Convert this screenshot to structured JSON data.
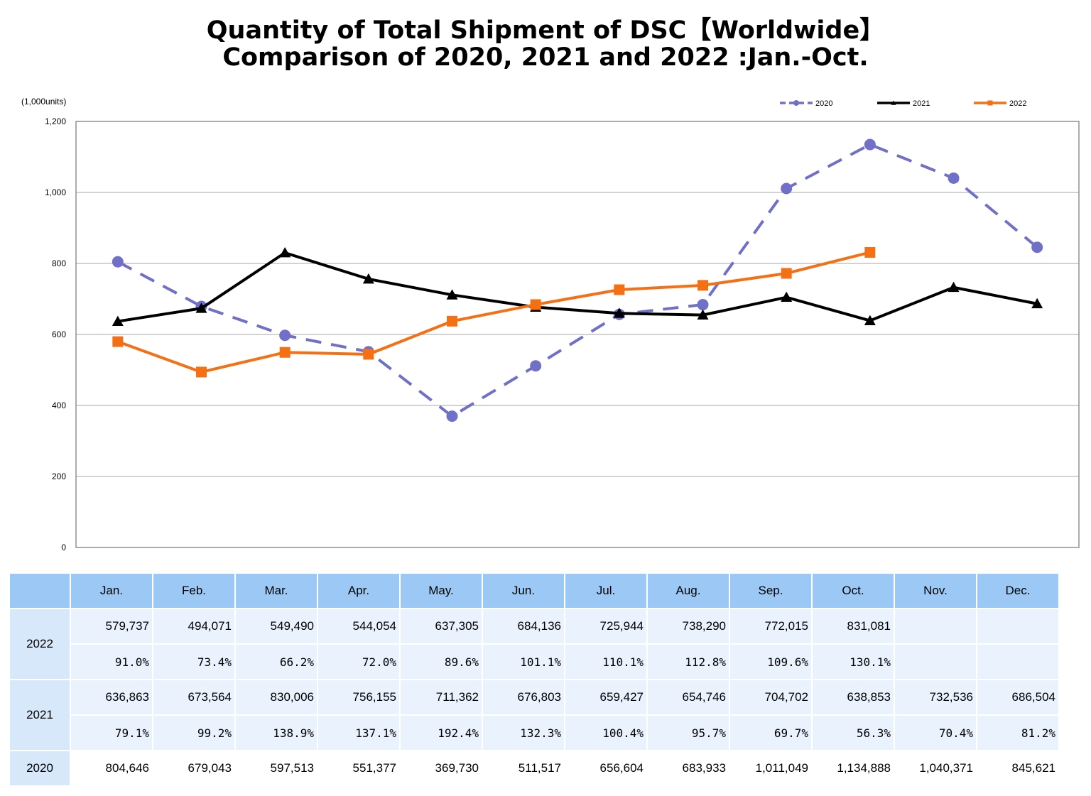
{
  "title_line1": "Quantity of Total Shipment of DSC【Worldwide】",
  "title_line2": "Comparison of 2020, 2021 and 2022 :Jan.-Oct.",
  "chart_data": {
    "type": "line",
    "unit_label": "(1,000units)",
    "categories": [
      "Jan.",
      "Feb.",
      "Mar.",
      "Apr.",
      "May.",
      "Jun.",
      "Jul.",
      "Aug.",
      "Sep.",
      "Oct.",
      "Nov.",
      "Dec."
    ],
    "ylim": [
      0,
      1200
    ],
    "yticks": [
      0,
      200,
      400,
      600,
      800,
      1000,
      1200
    ],
    "ytick_labels": [
      "0",
      "200",
      "400",
      "600",
      "800",
      "1,000",
      "1,200"
    ],
    "grid": true,
    "legend_position": "top-right",
    "series": [
      {
        "name": "2020",
        "color": "#7070c8",
        "style": "dashed",
        "marker": "circle",
        "values": [
          804.646,
          679.043,
          597.513,
          551.377,
          369.73,
          511.517,
          656.604,
          683.933,
          1011.049,
          1134.888,
          1040.371,
          845.621
        ]
      },
      {
        "name": "2021",
        "color": "#000000",
        "style": "solid",
        "marker": "triangle",
        "values": [
          636.863,
          673.564,
          830.006,
          756.155,
          711.362,
          676.803,
          659.427,
          654.746,
          704.702,
          638.853,
          732.536,
          686.504
        ]
      },
      {
        "name": "2022",
        "color": "#f57014",
        "style": "solid",
        "marker": "square",
        "values": [
          579.737,
          494.071,
          549.49,
          544.054,
          637.305,
          684.136,
          725.944,
          738.29,
          772.015,
          831.081,
          null,
          null
        ]
      }
    ]
  },
  "table": {
    "months": [
      "Jan.",
      "Feb.",
      "Mar.",
      "Apr.",
      "May.",
      "Jun.",
      "Jul.",
      "Aug.",
      "Sep.",
      "Oct.",
      "Nov.",
      "Dec."
    ],
    "rows": [
      {
        "year": "2022",
        "units": [
          "579,737",
          "494,071",
          "549,490",
          "544,054",
          "637,305",
          "684,136",
          "725,944",
          "738,290",
          "772,015",
          "831,081",
          "",
          ""
        ],
        "pct": [
          "91.0%",
          "73.4%",
          "66.2%",
          "72.0%",
          "89.6%",
          "101.1%",
          "110.1%",
          "112.8%",
          "109.6%",
          "130.1%",
          "",
          ""
        ]
      },
      {
        "year": "2021",
        "units": [
          "636,863",
          "673,564",
          "830,006",
          "756,155",
          "711,362",
          "676,803",
          "659,427",
          "654,746",
          "704,702",
          "638,853",
          "732,536",
          "686,504"
        ],
        "pct": [
          "79.1%",
          "99.2%",
          "138.9%",
          "137.1%",
          "192.4%",
          "132.3%",
          "100.4%",
          "95.7%",
          "69.7%",
          "56.3%",
          "70.4%",
          "81.2%"
        ]
      },
      {
        "year": "2020",
        "units": [
          "804,646",
          "679,043",
          "597,513",
          "551,377",
          "369,730",
          "511,517",
          "656,604",
          "683,933",
          "1,011,049",
          "1,134,888",
          "1,040,371",
          "845,621"
        ]
      }
    ]
  }
}
